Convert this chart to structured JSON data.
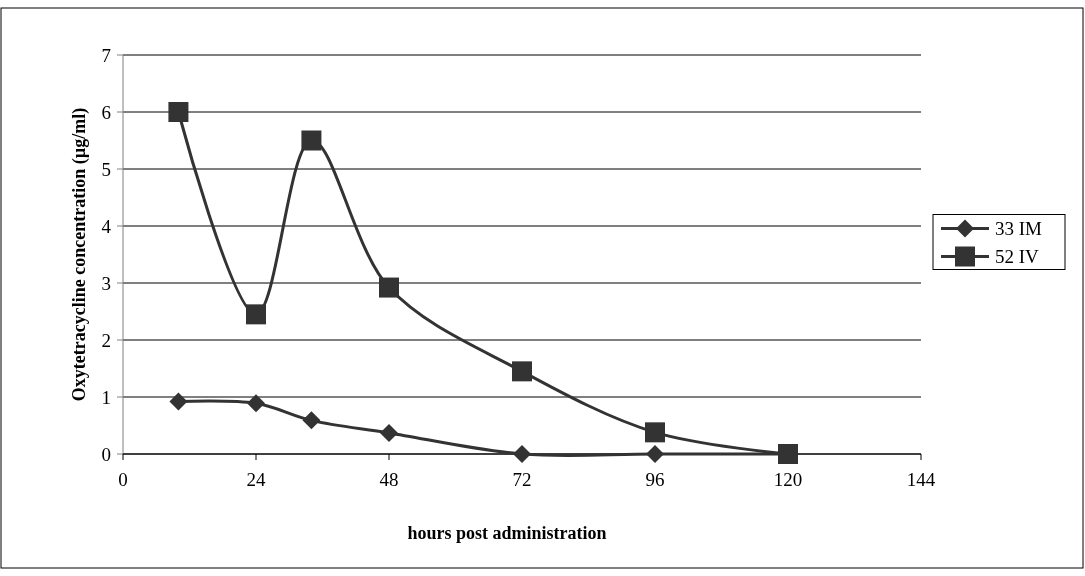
{
  "chart_data": {
    "type": "line",
    "xlabel": "hours post administration",
    "ylabel": "Oxytetracycline concentration (µg/ml)",
    "x": [
      10,
      24,
      34,
      48,
      72,
      96,
      120
    ],
    "series": [
      {
        "name": "33 IM",
        "color": "#333333",
        "marker": "diamond",
        "values": [
          0.92,
          0.89,
          0.59,
          0.37,
          0,
          0,
          0
        ]
      },
      {
        "name": "52 IV",
        "color": "#333333",
        "marker": "square",
        "values": [
          6.0,
          2.45,
          5.5,
          2.92,
          1.45,
          0.38,
          0
        ]
      }
    ],
    "xlim": [
      0,
      144
    ],
    "xticks": [
      0,
      24,
      48,
      72,
      96,
      120,
      144
    ],
    "ylim": [
      0,
      7
    ],
    "yticks": [
      0,
      1,
      2,
      3,
      4,
      5,
      6,
      7
    ],
    "grid": "y",
    "legend": "right",
    "line_style": "solid"
  }
}
